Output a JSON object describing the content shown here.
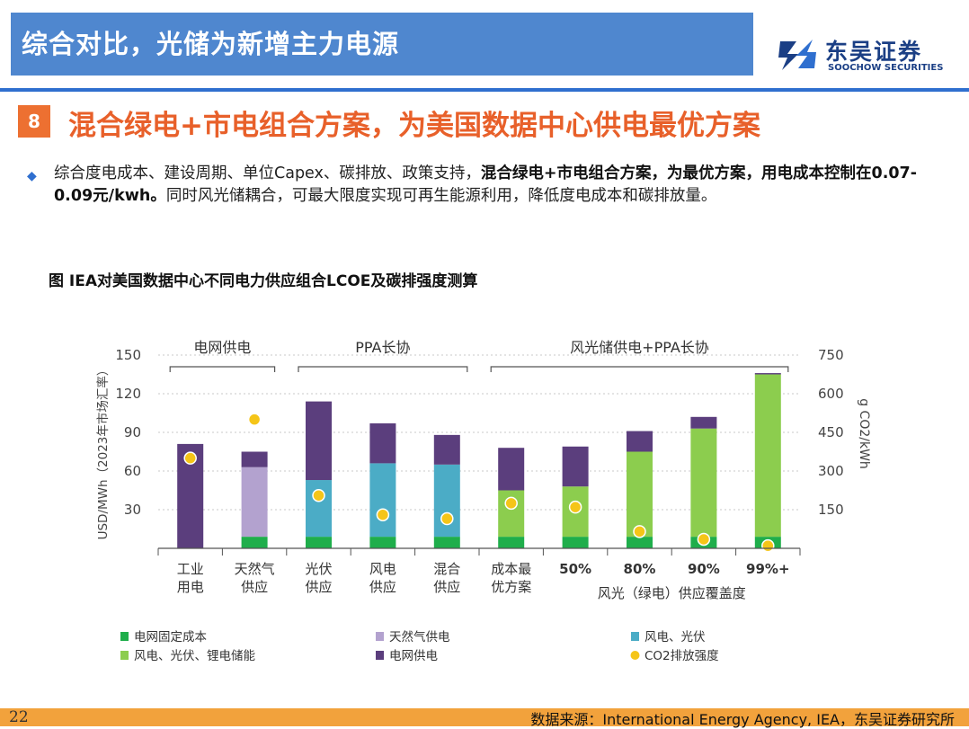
{
  "header": {
    "title": "综合对比，光储为新增主力电源"
  },
  "logo": {
    "cn": "东吴证券",
    "en": "SOOCHOW SECURITIES",
    "icon": "soochow-logo-icon"
  },
  "section": {
    "number": "8",
    "title": "混合绿电+市电组合方案，为美国数据中心供电最优方案"
  },
  "bullet": {
    "icon": "diamond-bullet-icon",
    "text_1": "综合度电成本、建设周期、单位Capex、碳排放、政策支持，",
    "text_bold": "混合绿电+市电组合方案，为最优方案，用电成本控制在0.07-0.09元/kwh。",
    "text_2": "同时风光储耦合，可最大限度实现可再生能源利用，降低度电成本和碳排放量。"
  },
  "figure": {
    "title": "图 IEA对美国数据中心不同电力供应组合LCOE及碳排强度测算"
  },
  "chart_data": {
    "type": "bar",
    "stacked": true,
    "ylabel": "USD/MWh（2023年市场汇率）",
    "y2label": "g CO2/kWh",
    "ylim": [
      0,
      150
    ],
    "y2lim": [
      0,
      750
    ],
    "yticks": [
      30,
      60,
      90,
      120,
      150
    ],
    "y2ticks": [
      150,
      300,
      450,
      600,
      750
    ],
    "group_labels": [
      "电网供电",
      "PPA长协",
      "风光储供电+PPA长协"
    ],
    "xlabel_group": "风光（绿电）供应覆盖度",
    "categories": [
      [
        "工业",
        "用电"
      ],
      [
        "天然气",
        "供应"
      ],
      [
        "光伏",
        "供应"
      ],
      [
        "风电",
        "供应"
      ],
      [
        "混合",
        "供应"
      ],
      [
        "成本最",
        "优方案"
      ],
      [
        "50%"
      ],
      [
        "80%"
      ],
      [
        "90%"
      ],
      [
        "99%+"
      ]
    ],
    "series": [
      {
        "name": "电网固定成本",
        "color": "#1fae4b",
        "values": [
          0,
          9,
          9,
          9,
          9,
          9,
          9,
          9,
          9,
          9
        ]
      },
      {
        "name": "天然气供电",
        "color": "#b3a2cf",
        "values": [
          0,
          54,
          0,
          0,
          0,
          0,
          0,
          0,
          0,
          0
        ]
      },
      {
        "name": "风电、光伏",
        "color": "#4bacc6",
        "values": [
          0,
          0,
          44,
          57,
          56,
          0,
          0,
          0,
          0,
          0
        ]
      },
      {
        "name": "风电、光伏、锂电储能",
        "color": "#8ccd4e",
        "values": [
          0,
          0,
          0,
          0,
          0,
          36,
          39,
          66,
          84,
          126
        ]
      },
      {
        "name": "电网供电",
        "color": "#5b3e7d",
        "values": [
          81,
          12,
          61,
          31,
          23,
          33,
          31,
          16,
          9,
          1
        ]
      },
      {
        "name": "CO2排放强度",
        "color": "#f5c518",
        "type": "scatter",
        "axis": "y2",
        "values": [
          350,
          500,
          205,
          130,
          115,
          175,
          160,
          65,
          35,
          10
        ]
      }
    ],
    "legend": [
      {
        "name": "电网固定成本",
        "color": "#1fae4b",
        "shape": "square"
      },
      {
        "name": "天然气供电",
        "color": "#b3a2cf",
        "shape": "square"
      },
      {
        "name": "风电、光伏",
        "color": "#4bacc6",
        "shape": "square"
      },
      {
        "name": "风电、光伏、锂电储能",
        "color": "#8ccd4e",
        "shape": "square"
      },
      {
        "name": "电网供电",
        "color": "#5b3e7d",
        "shape": "square"
      },
      {
        "name": "CO2排放强度",
        "color": "#f5c518",
        "shape": "circle"
      }
    ],
    "legend_position": "bottom",
    "grid": true
  },
  "footer": {
    "page": "22",
    "source": "数据来源：International Energy Agency, IEA，东吴证券研究所"
  }
}
